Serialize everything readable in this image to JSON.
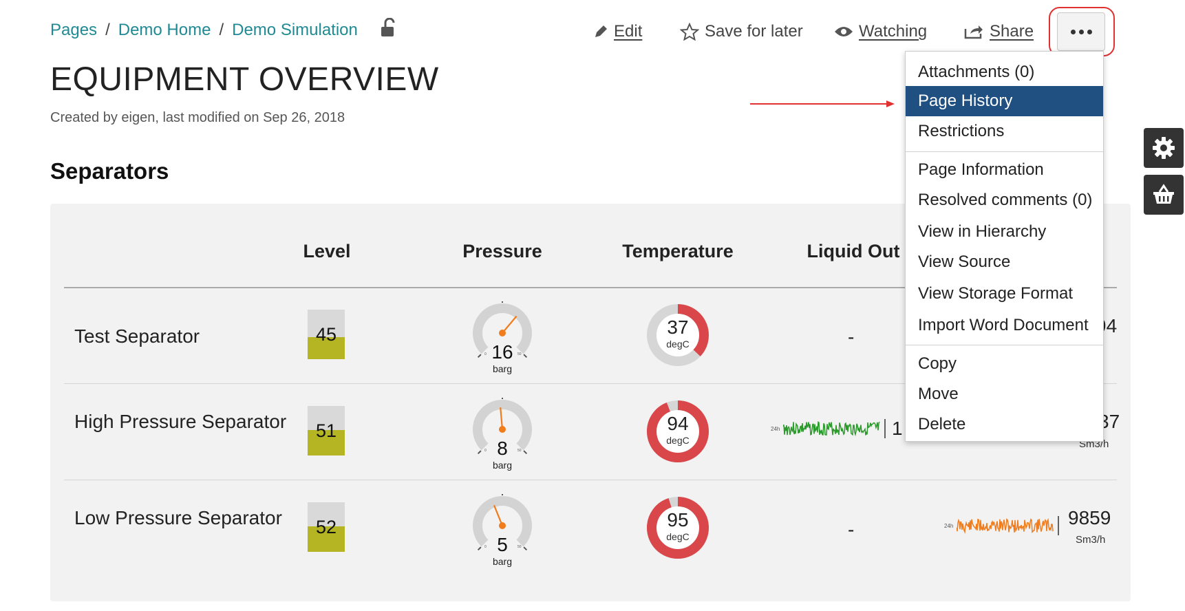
{
  "breadcrumb": {
    "items": [
      "Pages",
      "Demo Home",
      "Demo Simulation"
    ],
    "separator": "/"
  },
  "actions": {
    "edit": "Edit",
    "save": "Save for later",
    "watch": "Watching",
    "share": "Share"
  },
  "page": {
    "title": "EQUIPMENT OVERVIEW",
    "byline": "Created by eigen, last modified on Sep 26, 2018",
    "section": "Separators"
  },
  "table": {
    "headers": [
      "Level",
      "Pressure",
      "Temperature",
      "Liquid Out"
    ],
    "rows": [
      {
        "name": "Test Separator",
        "level": "45",
        "level_fraction": 0.45,
        "pressure": "16",
        "pressure_unit": "barg",
        "temperature": "37",
        "temperature_unit": "degC",
        "temperature_fraction": 0.37,
        "liquid": "-",
        "gas_partial": "94"
      },
      {
        "name": "High Pressure Separator",
        "level": "51",
        "level_fraction": 0.51,
        "pressure": "8",
        "pressure_unit": "barg",
        "temperature": "94",
        "temperature_unit": "degC",
        "temperature_fraction": 0.94,
        "liquid_spark_label": "24h",
        "liquid_partial": "1",
        "gas_partial": "37",
        "gas_unit": "Sm3/h"
      },
      {
        "name": "Low Pressure Separator",
        "level": "52",
        "level_fraction": 0.52,
        "pressure": "5",
        "pressure_unit": "barg",
        "temperature": "95",
        "temperature_unit": "degC",
        "temperature_fraction": 0.95,
        "liquid": "-",
        "gas_spark_label": "24h",
        "gas_value": "9859",
        "gas_unit": "Sm3/h"
      }
    ],
    "gauge_min": "0",
    "gauge_max": "50"
  },
  "menu": {
    "items": [
      "Attachments (0)",
      "Page History",
      "Restrictions",
      "Page Information",
      "Resolved comments (0)",
      "View in Hierarchy",
      "View Source",
      "View Storage Format",
      "Import Word Document",
      "Copy",
      "Move",
      "Delete"
    ],
    "active": "Page History"
  },
  "colors": {
    "link": "#1f8a93",
    "level_fill": "#b5b524",
    "donut": "#d9474a",
    "gauge_needle": "#f07c1b",
    "spark_green": "#2a9a2a",
    "spark_orange": "#f07c1b",
    "menu_active": "#205081",
    "highlight": "#e03030"
  },
  "icons": [
    "unlock-icon",
    "pencil-icon",
    "star-icon",
    "eye-icon",
    "share-icon",
    "more-icon",
    "gear-icon",
    "basket-icon"
  ]
}
